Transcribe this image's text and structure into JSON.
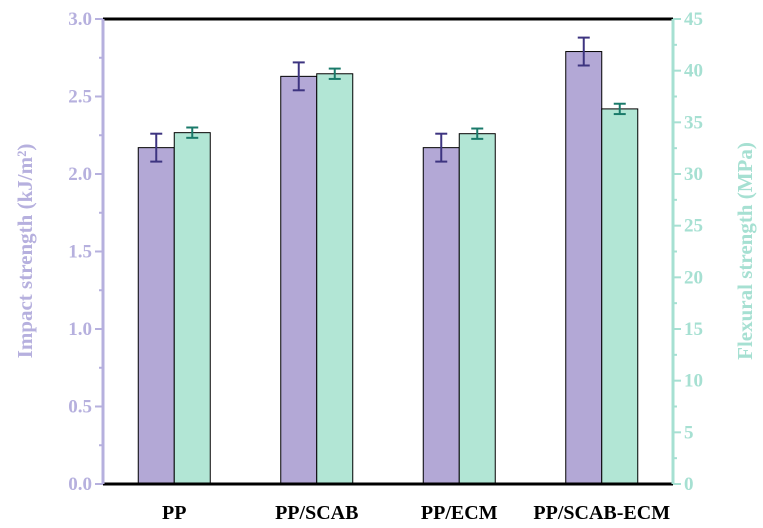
{
  "chart_data": {
    "type": "bar",
    "categories": [
      "PP",
      "PP/SCAB",
      "PP/ECM",
      "PP/SCAB-ECM"
    ],
    "series": [
      {
        "name": "Impact strength",
        "axis": "left",
        "values": [
          2.17,
          2.63,
          2.17,
          2.79
        ],
        "errors": [
          0.09,
          0.09,
          0.09,
          0.09
        ],
        "color": "#b3a8d6",
        "error_color": "#3d3480"
      },
      {
        "name": "Flexural strength",
        "axis": "right",
        "values": [
          34.0,
          39.7,
          33.9,
          36.3
        ],
        "errors": [
          0.5,
          0.5,
          0.5,
          0.5
        ],
        "color": "#b2e6d5",
        "error_color": "#1a7a6a"
      }
    ],
    "ylabel_left": "Impact strength (kJ/m²)",
    "ylabel_right": "Flexural strength (MPa)",
    "ylim_left": [
      0,
      3.0
    ],
    "ylim_right": [
      0,
      45
    ],
    "yticks_left": [
      "0.0",
      "0.5",
      "1.0",
      "1.5",
      "2.0",
      "2.5",
      "3.0"
    ],
    "yticks_right": [
      "0",
      "5",
      "10",
      "15",
      "20",
      "25",
      "30",
      "35",
      "40",
      "45"
    ],
    "grid": false,
    "colors": {
      "left_axis": "#b6b0de",
      "right_axis": "#a6e0d2",
      "frame": "#000000"
    }
  }
}
